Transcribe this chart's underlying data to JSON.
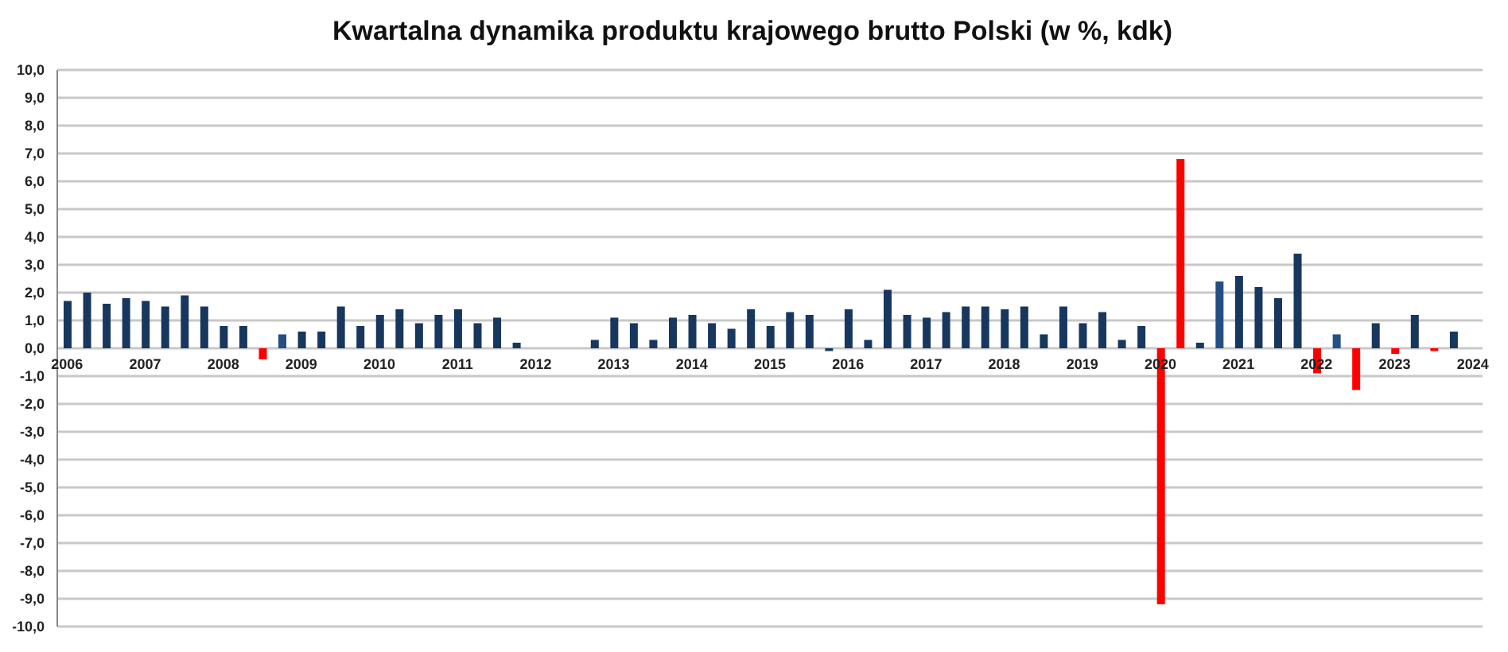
{
  "chart_data": {
    "type": "bar",
    "title": "Kwartalna dynamika produktu krajowego brutto Polski (w %, kdk)",
    "categories": [
      "2006",
      null,
      null,
      null,
      "2007",
      null,
      null,
      null,
      "2008",
      null,
      null,
      null,
      "2009",
      null,
      null,
      null,
      "2010",
      null,
      null,
      null,
      "2011",
      null,
      null,
      null,
      "2012",
      null,
      null,
      null,
      "2013",
      null,
      null,
      null,
      "2014",
      null,
      null,
      null,
      "2015",
      null,
      null,
      null,
      "2016",
      null,
      null,
      null,
      "2017",
      null,
      null,
      null,
      "2018",
      null,
      null,
      null,
      "2019",
      null,
      null,
      null,
      "2020",
      null,
      null,
      null,
      "2021",
      null,
      null,
      null,
      "2022",
      null,
      null,
      null,
      "2023",
      null,
      null,
      null,
      "2024"
    ],
    "values": [
      1.7,
      2.0,
      1.6,
      1.8,
      1.7,
      1.5,
      1.9,
      1.5,
      0.8,
      0.8,
      -0.4,
      0.5,
      0.6,
      0.6,
      1.5,
      0.8,
      1.2,
      1.4,
      0.9,
      1.2,
      1.4,
      0.9,
      1.1,
      0.2,
      null,
      null,
      null,
      0.3,
      1.1,
      0.9,
      0.3,
      1.1,
      1.2,
      0.9,
      0.7,
      1.4,
      0.8,
      1.3,
      1.2,
      -0.1,
      1.4,
      0.3,
      2.1,
      1.2,
      1.1,
      1.3,
      1.5,
      1.5,
      1.4,
      1.5,
      0.5,
      1.5,
      0.9,
      1.3,
      0.3,
      0.8,
      -9.2,
      6.8,
      0.2,
      2.4,
      2.6,
      2.2,
      1.8,
      3.4,
      -0.9,
      0.5,
      -1.5,
      0.9,
      -0.2,
      1.2,
      -0.1,
      0.6,
      null
    ],
    "colors": [
      "#17375e",
      "#17375e",
      "#17375e",
      "#17375e",
      "#17375e",
      "#17375e",
      "#17375e",
      "#17375e",
      "#17375e",
      "#17375e",
      "#ff0000",
      "#234f85",
      "#17375e",
      "#17375e",
      "#17375e",
      "#17375e",
      "#17375e",
      "#17375e",
      "#17375e",
      "#17375e",
      "#17375e",
      "#17375e",
      "#17375e",
      "#17375e",
      "#17375e",
      "#17375e",
      "#17375e",
      "#17375e",
      "#17375e",
      "#17375e",
      "#17375e",
      "#17375e",
      "#17375e",
      "#17375e",
      "#17375e",
      "#17375e",
      "#17375e",
      "#17375e",
      "#17375e",
      "#17375e",
      "#17375e",
      "#17375e",
      "#17375e",
      "#17375e",
      "#17375e",
      "#17375e",
      "#17375e",
      "#17375e",
      "#17375e",
      "#17375e",
      "#17375e",
      "#17375e",
      "#17375e",
      "#17375e",
      "#17375e",
      "#17375e",
      "#ff0000",
      "#ff0000",
      "#17375e",
      "#234f85",
      "#17375e",
      "#17375e",
      "#17375e",
      "#17375e",
      "#ff0000",
      "#234f85",
      "#ff0000",
      "#17375e",
      "#ff0000",
      "#17375e",
      "#ff0000",
      "#17375e",
      "#17375e"
    ],
    "ylim": [
      -10,
      10
    ],
    "yticks": [
      {
        "value": -10,
        "label": "-10,0"
      },
      {
        "value": -9,
        "label": "-9,0"
      },
      {
        "value": -8,
        "label": "-8,0"
      },
      {
        "value": -7,
        "label": "-7,0"
      },
      {
        "value": -6,
        "label": "-6,0"
      },
      {
        "value": -5,
        "label": "-5,0"
      },
      {
        "value": -4,
        "label": "-4,0"
      },
      {
        "value": -3,
        "label": "-3,0"
      },
      {
        "value": -2,
        "label": "-2,0"
      },
      {
        "value": -1,
        "label": "-1,0"
      },
      {
        "value": 0,
        "label": "0,0"
      },
      {
        "value": 1,
        "label": "1,0"
      },
      {
        "value": 2,
        "label": "2,0"
      },
      {
        "value": 3,
        "label": "3,0"
      },
      {
        "value": 4,
        "label": "4,0"
      },
      {
        "value": 5,
        "label": "5,0"
      },
      {
        "value": 6,
        "label": "6,0"
      },
      {
        "value": 7,
        "label": "7,0"
      },
      {
        "value": 8,
        "label": "8,0"
      },
      {
        "value": 9,
        "label": "9,0"
      },
      {
        "value": 10,
        "label": "10,0"
      }
    ],
    "grid": "y",
    "legend": false
  }
}
